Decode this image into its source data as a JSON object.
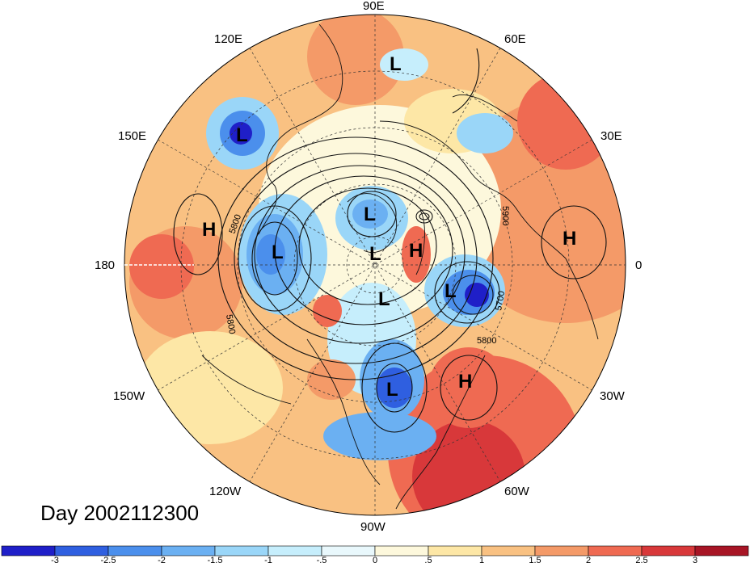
{
  "map": {
    "projection": "polar stereographic (north pole)",
    "longitude_labels": [
      "90E",
      "60E",
      "30E",
      "0",
      "30W",
      "60W",
      "90W",
      "120W",
      "150W",
      "180",
      "150E",
      "120E"
    ],
    "day_label": "Day 2002112300",
    "pressure_systems": [
      {
        "type": "L",
        "region": "northern Siberia"
      },
      {
        "type": "L",
        "region": "northeast Asia / Kamchatka"
      },
      {
        "type": "H",
        "region": "North Pacific"
      },
      {
        "type": "L",
        "region": "Bering Sea / Alaska"
      },
      {
        "type": "L",
        "region": "Arctic Ocean"
      },
      {
        "type": "L",
        "region": "North Pole"
      },
      {
        "type": "H",
        "region": "Greenland"
      },
      {
        "type": "L",
        "region": "Canadian Arctic"
      },
      {
        "type": "L",
        "region": "North Atlantic / Iceland"
      },
      {
        "type": "H",
        "region": "northern Africa"
      },
      {
        "type": "L",
        "region": "eastern United States"
      },
      {
        "type": "H",
        "region": "central Atlantic"
      }
    ],
    "contour_labels": [
      "5800",
      "5800",
      "5700",
      "5800",
      "5900"
    ]
  },
  "colorbar": {
    "tick_labels": [
      "-3",
      "-2.5",
      "-2",
      "-1.5",
      "-1",
      "-.5",
      "0",
      ".5",
      "1",
      "1.5",
      "2",
      "2.5",
      "3"
    ],
    "colors": [
      "#1f1fc8",
      "#2f5fe0",
      "#4b8fec",
      "#6bb0f2",
      "#9ad6f8",
      "#c6eefc",
      "#e9f8fc",
      "#fdf8dc",
      "#fde7a6",
      "#f9c182",
      "#f49a68",
      "#ef6a52",
      "#d8383a",
      "#a71525"
    ]
  }
}
